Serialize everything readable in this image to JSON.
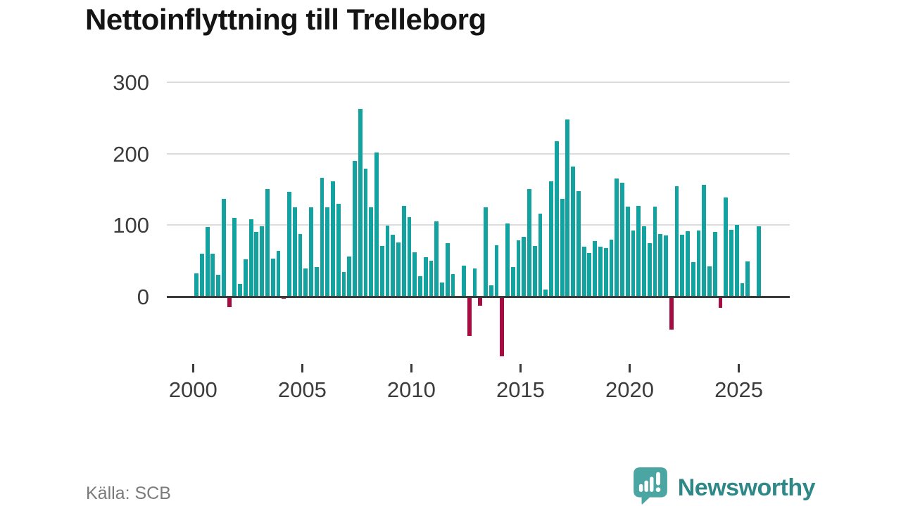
{
  "title": "Nettoinflyttning till Trelleborg",
  "source": "Källa: SCB",
  "branding": {
    "logo_text": "Newsworthy",
    "logo_icon": "speech-bubble-bar-chart-exclamation"
  },
  "colors": {
    "positive_bar": "#12a3a0",
    "negative_bar": "#a50d42",
    "axis_line": "#3a3a3a",
    "gridline": "#dcdcdc",
    "tick_text": "#3c3c3c",
    "title_text": "#141414",
    "source_text": "#7a7a7a",
    "brand_text": "#2e8888",
    "brand_icon": "#4aa5a3"
  },
  "chart_data": {
    "type": "bar",
    "title": "Nettoinflyttning till Trelleborg",
    "frequency": "quarterly",
    "xlabel": "",
    "ylabel": "",
    "yticks": [
      "0",
      "100",
      "200",
      "300"
    ],
    "ylim": [
      -100,
      300
    ],
    "xticks": [
      "2000",
      "2005",
      "2010",
      "2015",
      "2020",
      "2025"
    ],
    "grid": "horizontal",
    "legend": "none",
    "periods": [
      "2000 Q1",
      "2000 Q2",
      "2000 Q3",
      "2000 Q4",
      "2001 Q1",
      "2001 Q2",
      "2001 Q3",
      "2001 Q4",
      "2002 Q1",
      "2002 Q2",
      "2002 Q3",
      "2002 Q4",
      "2003 Q1",
      "2003 Q2",
      "2003 Q3",
      "2003 Q4",
      "2004 Q1",
      "2004 Q2",
      "2004 Q3",
      "2004 Q4",
      "2005 Q1",
      "2005 Q2",
      "2005 Q3",
      "2005 Q4",
      "2006 Q1",
      "2006 Q2",
      "2006 Q3",
      "2006 Q4",
      "2007 Q1",
      "2007 Q2",
      "2007 Q3",
      "2007 Q4",
      "2008 Q1",
      "2008 Q2",
      "2008 Q3",
      "2008 Q4",
      "2009 Q1",
      "2009 Q2",
      "2009 Q3",
      "2009 Q4",
      "2010 Q1",
      "2010 Q2",
      "2010 Q3",
      "2010 Q4",
      "2011 Q1",
      "2011 Q2",
      "2011 Q3",
      "2011 Q4",
      "2012 Q1",
      "2012 Q2",
      "2012 Q3",
      "2012 Q4",
      "2013 Q1",
      "2013 Q2",
      "2013 Q3",
      "2013 Q4",
      "2014 Q1",
      "2014 Q2",
      "2014 Q3",
      "2014 Q4",
      "2015 Q1",
      "2015 Q2",
      "2015 Q3",
      "2015 Q4",
      "2016 Q1",
      "2016 Q2",
      "2016 Q3",
      "2016 Q4",
      "2017 Q1",
      "2017 Q2",
      "2017 Q3",
      "2017 Q4",
      "2018 Q1",
      "2018 Q2",
      "2018 Q3",
      "2018 Q4",
      "2019 Q1",
      "2019 Q2",
      "2019 Q3",
      "2019 Q4",
      "2020 Q1",
      "2020 Q2",
      "2020 Q3",
      "2020 Q4",
      "2021 Q1",
      "2021 Q2",
      "2021 Q3",
      "2021 Q4",
      "2022 Q1",
      "2022 Q2",
      "2022 Q3",
      "2022 Q4",
      "2023 Q1",
      "2023 Q2",
      "2023 Q3",
      "2023 Q4",
      "2024 Q1",
      "2024 Q2",
      "2024 Q3",
      "2024 Q4",
      "2025 Q1",
      "2025 Q2",
      "2025 Q3",
      "2025 Q4"
    ],
    "values": [
      32,
      60,
      97,
      60,
      30,
      137,
      -15,
      110,
      18,
      52,
      108,
      90,
      98,
      150,
      53,
      64,
      -3,
      147,
      125,
      88,
      39,
      125,
      41,
      166,
      125,
      161,
      130,
      34,
      56,
      190,
      263,
      179,
      125,
      202,
      71,
      99,
      87,
      76,
      127,
      111,
      62,
      29,
      55,
      50,
      105,
      20,
      75,
      31,
      0,
      43,
      -55,
      39,
      -13,
      125,
      16,
      72,
      -84,
      102,
      41,
      79,
      84,
      150,
      71,
      116,
      10,
      161,
      217,
      137,
      248,
      182,
      148,
      70,
      61,
      78,
      70,
      68,
      80,
      165,
      159,
      126,
      92,
      127,
      98,
      75,
      126,
      88,
      86,
      -46,
      154,
      87,
      91,
      48,
      92,
      156,
      42,
      90,
      -16,
      139,
      93,
      100,
      19,
      49,
      0,
      98
    ]
  }
}
